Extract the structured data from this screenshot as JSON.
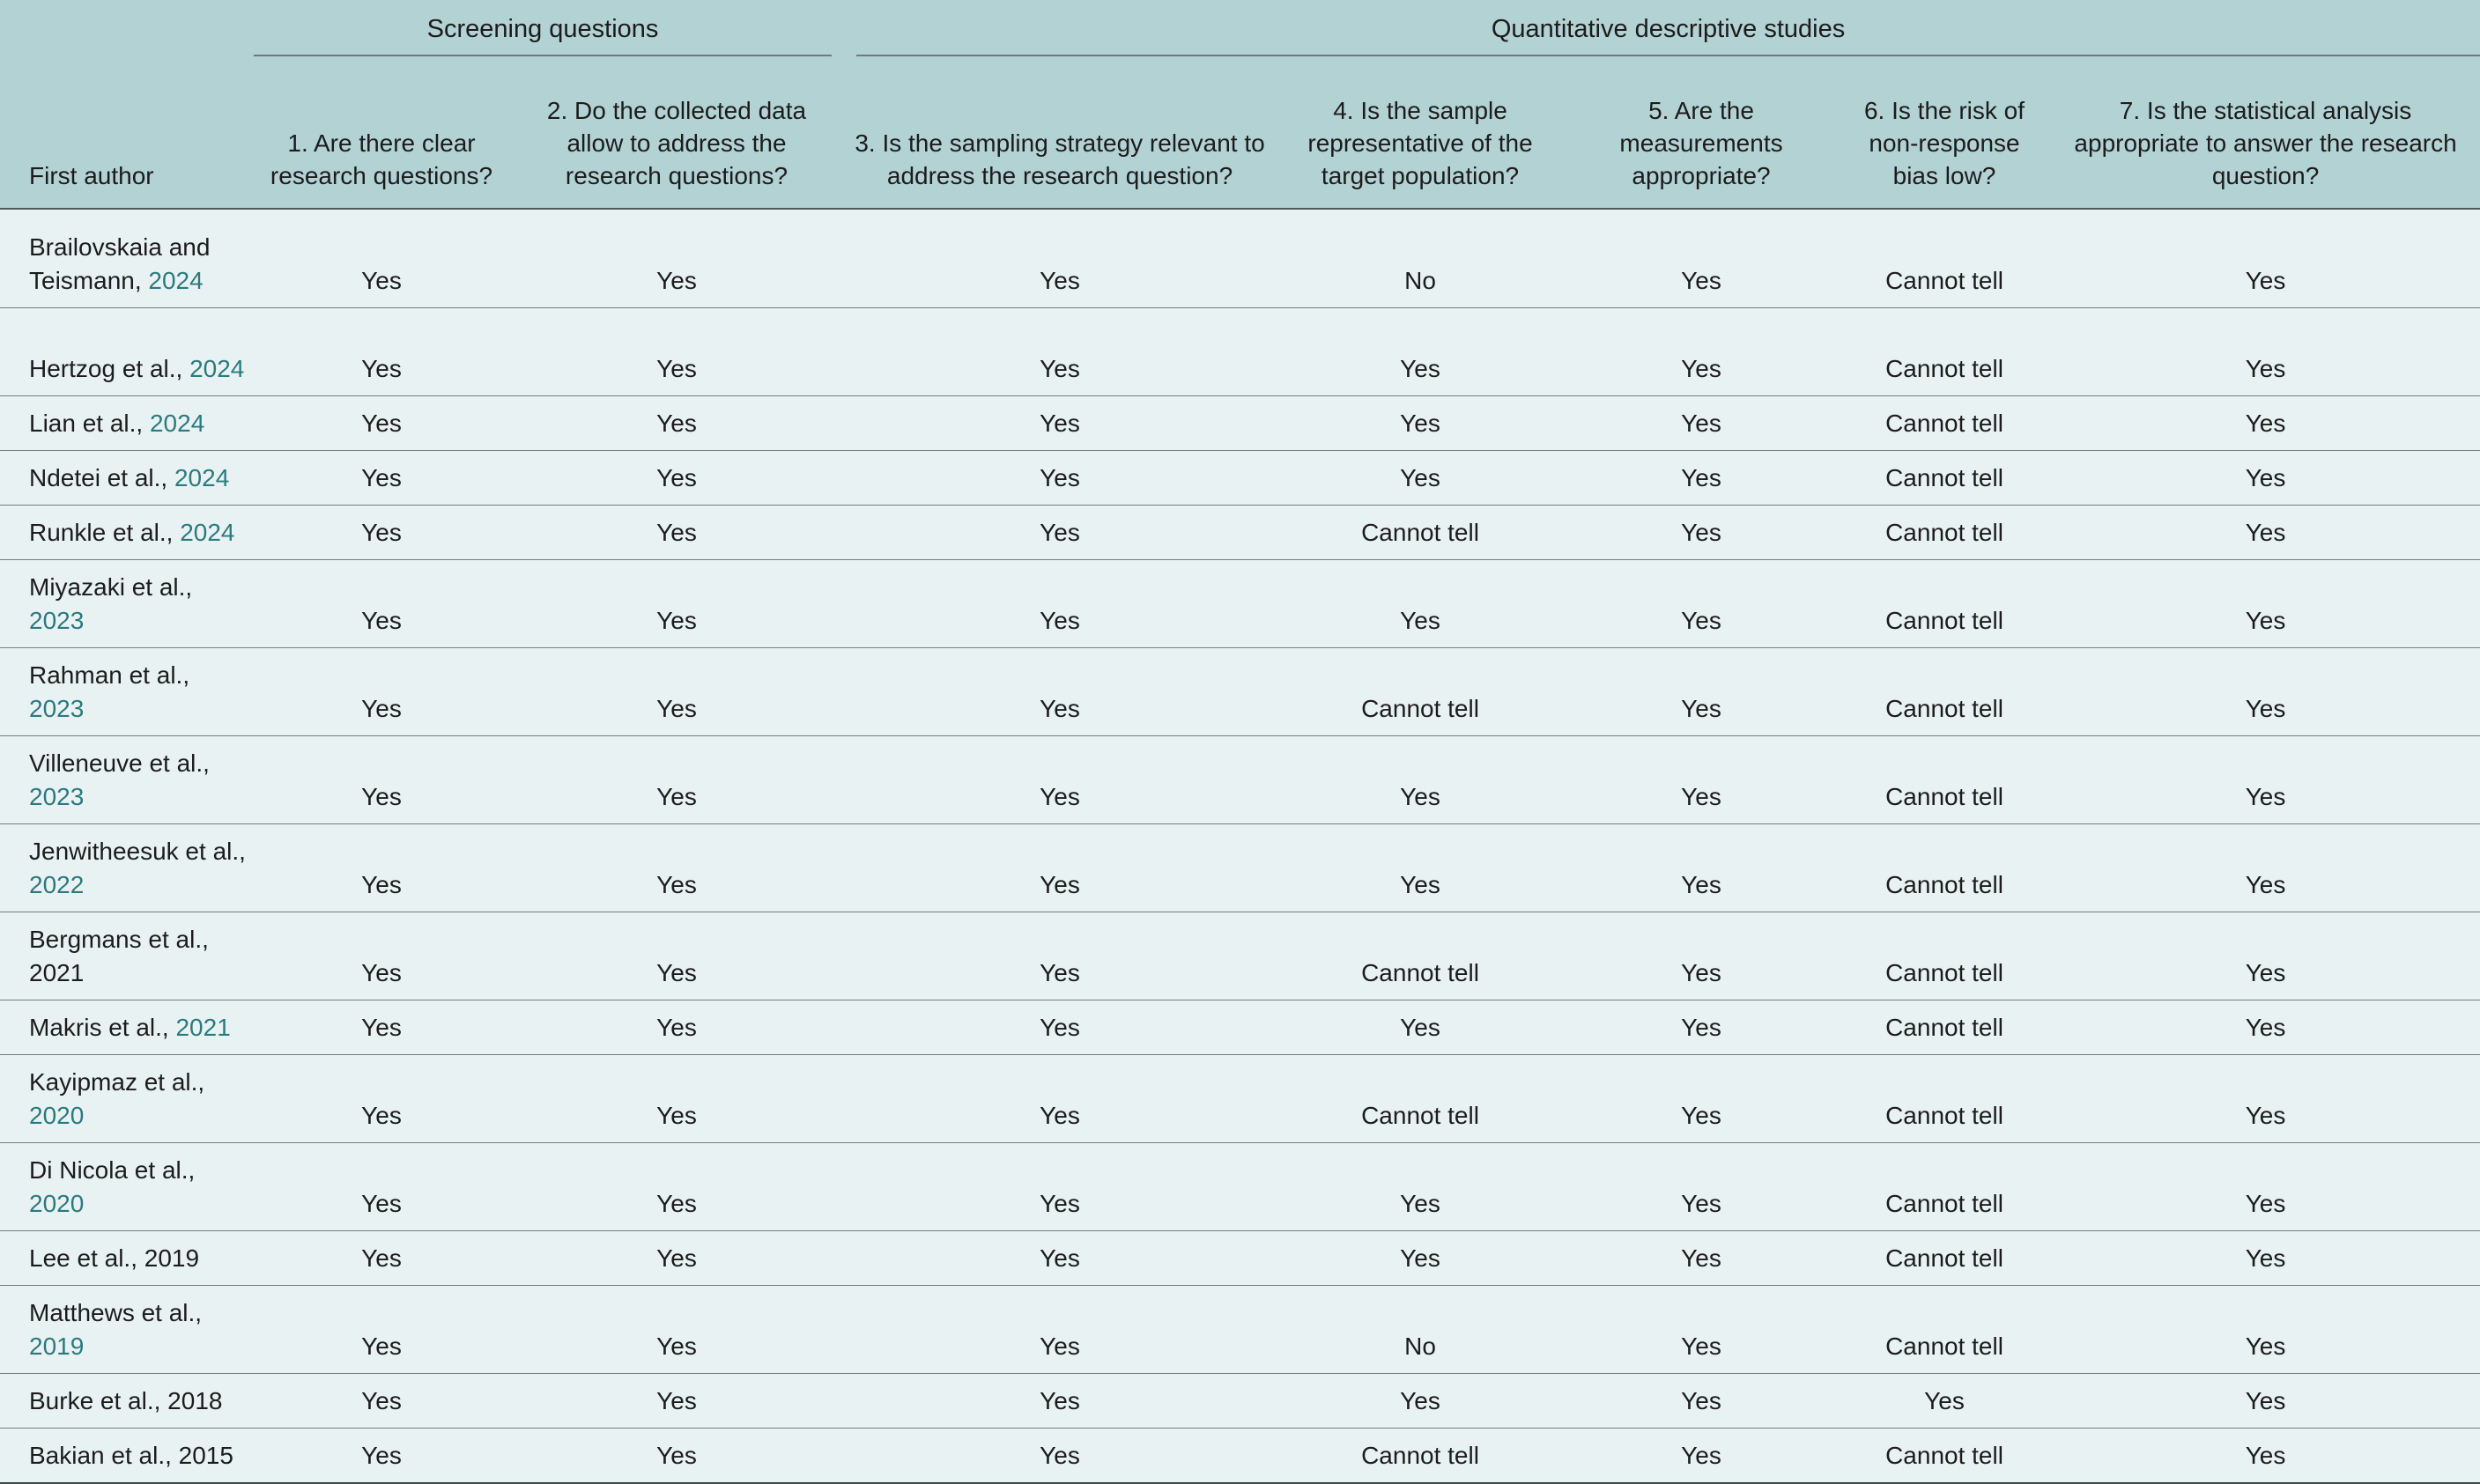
{
  "header": {
    "group_screening": "Screening questions",
    "group_quantitative": "Quantitative descriptive studies",
    "first_author": "First author",
    "q1": "1. Are there clear research questions?",
    "q2": "2. Do the collected data allow to address the research questions?",
    "q3": "3. Is the sampling strategy relevant to address the research question?",
    "q4": "4. Is the sample representative of the target population?",
    "q5": "5. Are the measurements appropriate?",
    "q6": "6. Is the risk of non-response bias low?",
    "q7": "7. Is the statistical analysis appropriate to answer the research question?"
  },
  "colors": {
    "header_bg": "#b3d2d4",
    "body_bg": "#e9f2f2",
    "link_year": "#2b7a7e"
  },
  "rows": [
    {
      "author": "Brailovskaia and Teismann, ",
      "year": "2024",
      "answers": [
        "Yes",
        "Yes",
        "Yes",
        "No",
        "Yes",
        "Cannot tell",
        "Yes"
      ]
    },
    {
      "author": "Hertzog et al., ",
      "year": "2024",
      "answers": [
        "Yes",
        "Yes",
        "Yes",
        "Yes",
        "Yes",
        "Cannot tell",
        "Yes"
      ]
    },
    {
      "author": "Lian et al., ",
      "year": "2024",
      "answers": [
        "Yes",
        "Yes",
        "Yes",
        "Yes",
        "Yes",
        "Cannot tell",
        "Yes"
      ]
    },
    {
      "author": "Ndetei et al., ",
      "year": "2024",
      "answers": [
        "Yes",
        "Yes",
        "Yes",
        "Yes",
        "Yes",
        "Cannot tell",
        "Yes"
      ]
    },
    {
      "author": "Runkle et al., ",
      "year": "2024",
      "answers": [
        "Yes",
        "Yes",
        "Yes",
        "Cannot tell",
        "Yes",
        "Cannot tell",
        "Yes"
      ]
    },
    {
      "author": "Miyazaki et al., ",
      "year": "2023",
      "answers": [
        "Yes",
        "Yes",
        "Yes",
        "Yes",
        "Yes",
        "Cannot tell",
        "Yes"
      ]
    },
    {
      "author": "Rahman et al., ",
      "year": "2023",
      "answers": [
        "Yes",
        "Yes",
        "Yes",
        "Cannot tell",
        "Yes",
        "Cannot tell",
        "Yes"
      ]
    },
    {
      "author": "Villeneuve et al., ",
      "year": "2023",
      "answers": [
        "Yes",
        "Yes",
        "Yes",
        "Yes",
        "Yes",
        "Cannot tell",
        "Yes"
      ]
    },
    {
      "author": "Jenwitheesuk et al., ",
      "year": "2022",
      "answers": [
        "Yes",
        "Yes",
        "Yes",
        "Yes",
        "Yes",
        "Cannot tell",
        "Yes"
      ]
    },
    {
      "author": "Bergmans et al., 2021",
      "year": "",
      "answers": [
        "Yes",
        "Yes",
        "Yes",
        "Cannot tell",
        "Yes",
        "Cannot tell",
        "Yes"
      ]
    },
    {
      "author": "Makris et al., ",
      "year": "2021",
      "answers": [
        "Yes",
        "Yes",
        "Yes",
        "Yes",
        "Yes",
        "Cannot tell",
        "Yes"
      ]
    },
    {
      "author": "Kayipmaz et al., ",
      "year": "2020",
      "answers": [
        "Yes",
        "Yes",
        "Yes",
        "Cannot tell",
        "Yes",
        "Cannot tell",
        "Yes"
      ]
    },
    {
      "author": "Di Nicola et al., ",
      "year": "2020",
      "answers": [
        "Yes",
        "Yes",
        "Yes",
        "Yes",
        "Yes",
        "Cannot tell",
        "Yes"
      ]
    },
    {
      "author": "Lee et al., 2019",
      "year": "",
      "answers": [
        "Yes",
        "Yes",
        "Yes",
        "Yes",
        "Yes",
        "Cannot tell",
        "Yes"
      ]
    },
    {
      "author": "Matthews et al., ",
      "year": "2019",
      "answers": [
        "Yes",
        "Yes",
        "Yes",
        "No",
        "Yes",
        "Cannot tell",
        "Yes"
      ]
    },
    {
      "author": "Burke et al., 2018",
      "year": "",
      "answers": [
        "Yes",
        "Yes",
        "Yes",
        "Yes",
        "Yes",
        "Yes",
        "Yes"
      ]
    },
    {
      "author": "Bakian et al., 2015",
      "year": "",
      "answers": [
        "Yes",
        "Yes",
        "Yes",
        "Cannot tell",
        "Yes",
        "Cannot tell",
        "Yes"
      ]
    }
  ]
}
